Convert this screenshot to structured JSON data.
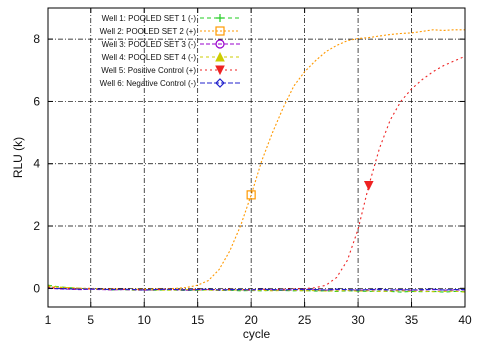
{
  "chart_data": {
    "type": "line",
    "xlabel": "cycle",
    "ylabel": "RLU (k)",
    "xlim": [
      1,
      40
    ],
    "ylim": [
      -0.6,
      9.0
    ],
    "x_ticks": [
      1,
      5,
      10,
      15,
      20,
      25,
      30,
      35,
      40
    ],
    "y_ticks": [
      0,
      2,
      4,
      6,
      8
    ],
    "grid": true,
    "grid_style": "dash-dot",
    "legend_position": "top-left",
    "series": [
      {
        "name": "Well 1: POOLED SET 1 (-)",
        "color": "#22cc22",
        "marker": "plus",
        "dash": "4,3",
        "x": [
          1,
          2,
          3,
          4,
          5,
          6,
          7,
          8,
          9,
          10,
          11,
          12,
          13,
          14,
          15,
          16,
          17,
          18,
          19,
          20,
          21,
          22,
          23,
          24,
          25,
          26,
          27,
          28,
          29,
          30,
          31,
          32,
          33,
          34,
          35,
          36,
          37,
          38,
          39,
          40
        ],
        "y": [
          0.1,
          0.05,
          0.02,
          0.0,
          -0.02,
          -0.03,
          -0.05,
          -0.04,
          -0.06,
          -0.05,
          -0.06,
          -0.05,
          -0.06,
          -0.07,
          -0.06,
          -0.05,
          -0.07,
          -0.06,
          -0.08,
          -0.07,
          -0.08,
          -0.06,
          -0.07,
          -0.08,
          -0.07,
          -0.09,
          -0.08,
          -0.1,
          -0.08,
          -0.09,
          -0.1,
          -0.09,
          -0.1,
          -0.12,
          -0.1,
          -0.11,
          -0.1,
          -0.12,
          -0.1,
          -0.11
        ]
      },
      {
        "name": "Well 2: POOLED SET 2 (+)",
        "color": "#ff9900",
        "marker": "square",
        "marker_x": 20,
        "dash": "2,2",
        "x": [
          1,
          2,
          3,
          4,
          5,
          6,
          7,
          8,
          9,
          10,
          11,
          12,
          13,
          14,
          15,
          16,
          17,
          18,
          19,
          20,
          21,
          22,
          23,
          24,
          25,
          26,
          27,
          28,
          29,
          30,
          31,
          32,
          33,
          34,
          35,
          36,
          37,
          38,
          39,
          40
        ],
        "y": [
          0.05,
          0.03,
          0.02,
          0.0,
          0.0,
          -0.02,
          -0.02,
          -0.03,
          -0.03,
          -0.03,
          -0.02,
          -0.02,
          0.0,
          0.03,
          0.1,
          0.25,
          0.6,
          1.2,
          2.0,
          3.0,
          4.1,
          5.0,
          5.8,
          6.5,
          6.95,
          7.3,
          7.6,
          7.8,
          7.95,
          8.02,
          8.05,
          8.1,
          8.15,
          8.18,
          8.2,
          8.25,
          8.3,
          8.28,
          8.3,
          8.3
        ]
      },
      {
        "name": "Well 3: POOLED SET 3 (-)",
        "color": "#9900cc",
        "marker": "circle",
        "dash": "4,2",
        "x": [
          1,
          2,
          3,
          4,
          5,
          6,
          7,
          8,
          9,
          10,
          11,
          12,
          13,
          14,
          15,
          16,
          17,
          18,
          19,
          20,
          21,
          22,
          23,
          24,
          25,
          26,
          27,
          28,
          29,
          30,
          31,
          32,
          33,
          34,
          35,
          36,
          37,
          38,
          39,
          40
        ],
        "y": [
          0.0,
          -0.02,
          -0.03,
          -0.04,
          -0.03,
          -0.04,
          -0.05,
          -0.04,
          -0.05,
          -0.06,
          -0.05,
          -0.04,
          -0.05,
          -0.06,
          -0.05,
          -0.04,
          -0.06,
          -0.05,
          -0.05,
          -0.06,
          -0.04,
          -0.05,
          -0.06,
          -0.05,
          -0.04,
          -0.05,
          -0.06,
          -0.04,
          -0.05,
          -0.06,
          -0.05,
          -0.04,
          -0.06,
          -0.05,
          -0.06,
          -0.05,
          -0.04,
          -0.06,
          -0.05,
          -0.05
        ]
      },
      {
        "name": "Well 4: POOLED SET 4 (-)",
        "color": "#cccc00",
        "marker": "triangle",
        "dash": "3,3",
        "x": [
          1,
          2,
          3,
          4,
          5,
          6,
          7,
          8,
          9,
          10,
          11,
          12,
          13,
          14,
          15,
          16,
          17,
          18,
          19,
          20,
          21,
          22,
          23,
          24,
          25,
          26,
          27,
          28,
          29,
          30,
          31,
          32,
          33,
          34,
          35,
          36,
          37,
          38,
          39,
          40
        ],
        "y": [
          0.08,
          0.04,
          0.02,
          0.0,
          -0.02,
          -0.03,
          -0.04,
          -0.03,
          -0.05,
          -0.04,
          -0.05,
          -0.06,
          -0.05,
          -0.04,
          -0.06,
          -0.05,
          -0.07,
          -0.06,
          -0.05,
          -0.07,
          -0.06,
          -0.08,
          -0.07,
          -0.06,
          -0.08,
          -0.07,
          -0.09,
          -0.08,
          -0.07,
          -0.09,
          -0.08,
          -0.1,
          -0.09,
          -0.08,
          -0.1,
          -0.09,
          -0.11,
          -0.1,
          -0.09,
          -0.12
        ]
      },
      {
        "name": "Well 5: Positive Control (+)",
        "color": "#ee2222",
        "marker": "triangle-down",
        "marker_x": 31,
        "dash": "2,3",
        "x": [
          1,
          2,
          3,
          4,
          5,
          6,
          7,
          8,
          9,
          10,
          11,
          12,
          13,
          14,
          15,
          16,
          17,
          18,
          19,
          20,
          21,
          22,
          23,
          24,
          25,
          26,
          27,
          28,
          29,
          30,
          31,
          32,
          33,
          34,
          35,
          36,
          37,
          38,
          39,
          40
        ],
        "y": [
          0.02,
          0.0,
          -0.01,
          -0.02,
          -0.02,
          -0.03,
          -0.03,
          -0.03,
          -0.04,
          -0.04,
          -0.04,
          -0.03,
          -0.04,
          -0.04,
          -0.03,
          -0.04,
          -0.04,
          -0.03,
          -0.04,
          -0.04,
          -0.03,
          -0.04,
          -0.03,
          -0.02,
          -0.01,
          0.02,
          0.1,
          0.35,
          0.9,
          1.9,
          3.3,
          4.5,
          5.4,
          6.0,
          6.4,
          6.7,
          6.95,
          7.15,
          7.3,
          7.45
        ]
      },
      {
        "name": "Well 6: Negative Control (-)",
        "color": "#2222cc",
        "marker": "diamond",
        "dash": "5,2",
        "x": [
          1,
          2,
          3,
          4,
          5,
          6,
          7,
          8,
          9,
          10,
          11,
          12,
          13,
          14,
          15,
          16,
          17,
          18,
          19,
          20,
          21,
          22,
          23,
          24,
          25,
          26,
          27,
          28,
          29,
          30,
          31,
          32,
          33,
          34,
          35,
          36,
          37,
          38,
          39,
          40
        ],
        "y": [
          0.0,
          -0.01,
          -0.02,
          -0.03,
          -0.02,
          -0.03,
          -0.04,
          -0.03,
          -0.04,
          -0.05,
          -0.04,
          -0.03,
          -0.04,
          -0.05,
          -0.04,
          -0.03,
          -0.05,
          -0.04,
          -0.04,
          -0.05,
          -0.03,
          -0.04,
          -0.05,
          -0.04,
          -0.03,
          -0.04,
          -0.05,
          -0.03,
          -0.04,
          -0.05,
          -0.04,
          -0.03,
          -0.05,
          -0.04,
          -0.05,
          -0.04,
          -0.03,
          -0.05,
          -0.04,
          -0.04
        ]
      }
    ]
  }
}
